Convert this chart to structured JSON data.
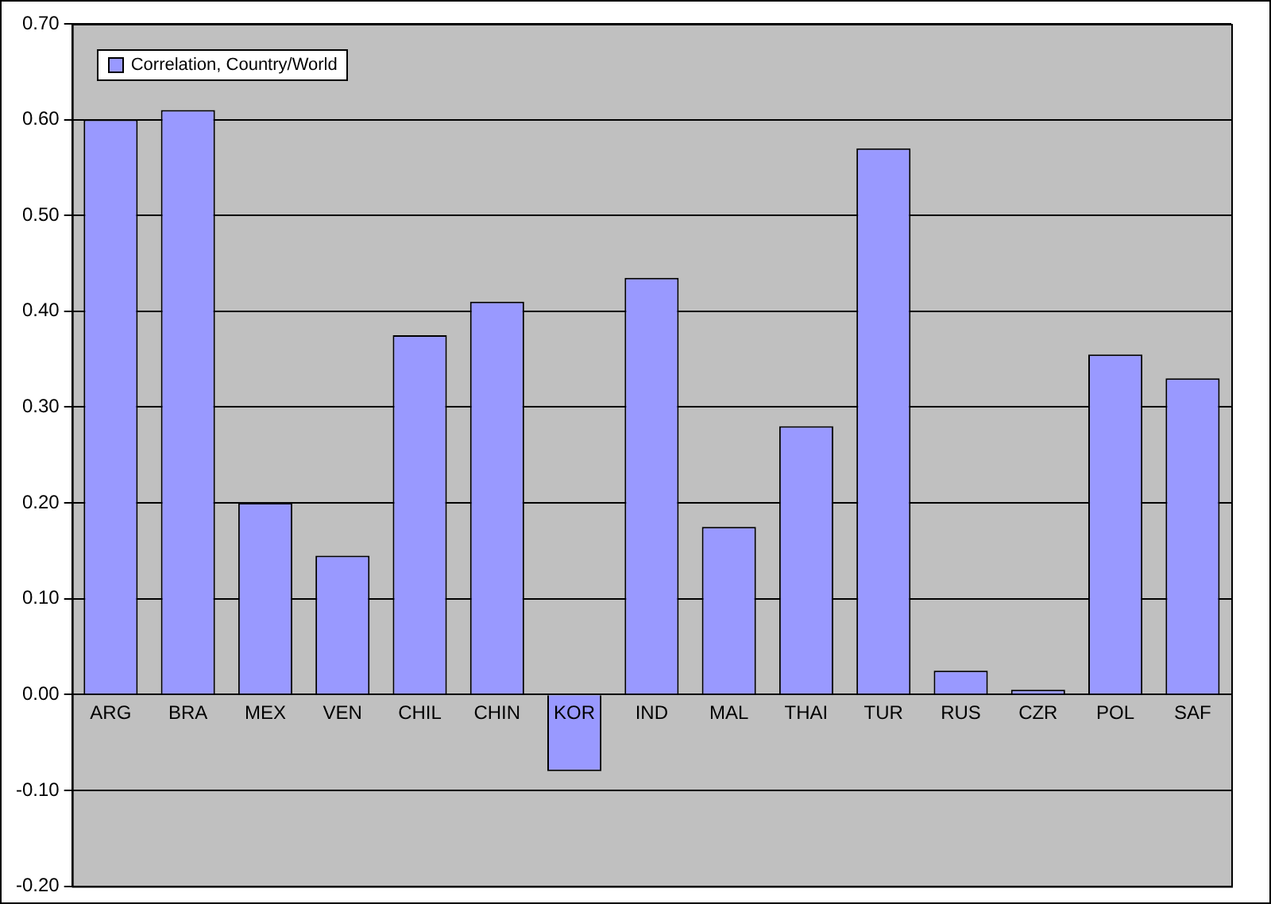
{
  "chart_data": {
    "type": "bar",
    "categories": [
      "ARG",
      "BRA",
      "MEX",
      "VEN",
      "CHIL",
      "CHIN",
      "KOR",
      "IND",
      "MAL",
      "THAI",
      "TUR",
      "RUS",
      "CZR",
      "POL",
      "SAF"
    ],
    "series": [
      {
        "name": "Correlation, Country/World",
        "color": "#9999ff",
        "values": [
          0.6,
          0.61,
          0.2,
          0.145,
          0.375,
          0.41,
          -0.08,
          0.435,
          0.175,
          0.28,
          0.57,
          0.025,
          0.005,
          0.355,
          0.33
        ]
      }
    ],
    "ylim": [
      -0.2,
      0.7
    ],
    "yticks": [
      {
        "value": -0.2,
        "label": "-0.20"
      },
      {
        "value": -0.1,
        "label": "-0.10"
      },
      {
        "value": 0,
        "label": "0.00"
      },
      {
        "value": 0.1,
        "label": "0.10"
      },
      {
        "value": 0.2,
        "label": "0.20"
      },
      {
        "value": 0.3,
        "label": "0.30"
      },
      {
        "value": 0.4,
        "label": "0.40"
      },
      {
        "value": 0.5,
        "label": "0.50"
      },
      {
        "value": 0.6,
        "label": "0.60"
      },
      {
        "value": 0.7,
        "label": "0.70"
      }
    ],
    "grid": "y",
    "legend": "top left"
  }
}
